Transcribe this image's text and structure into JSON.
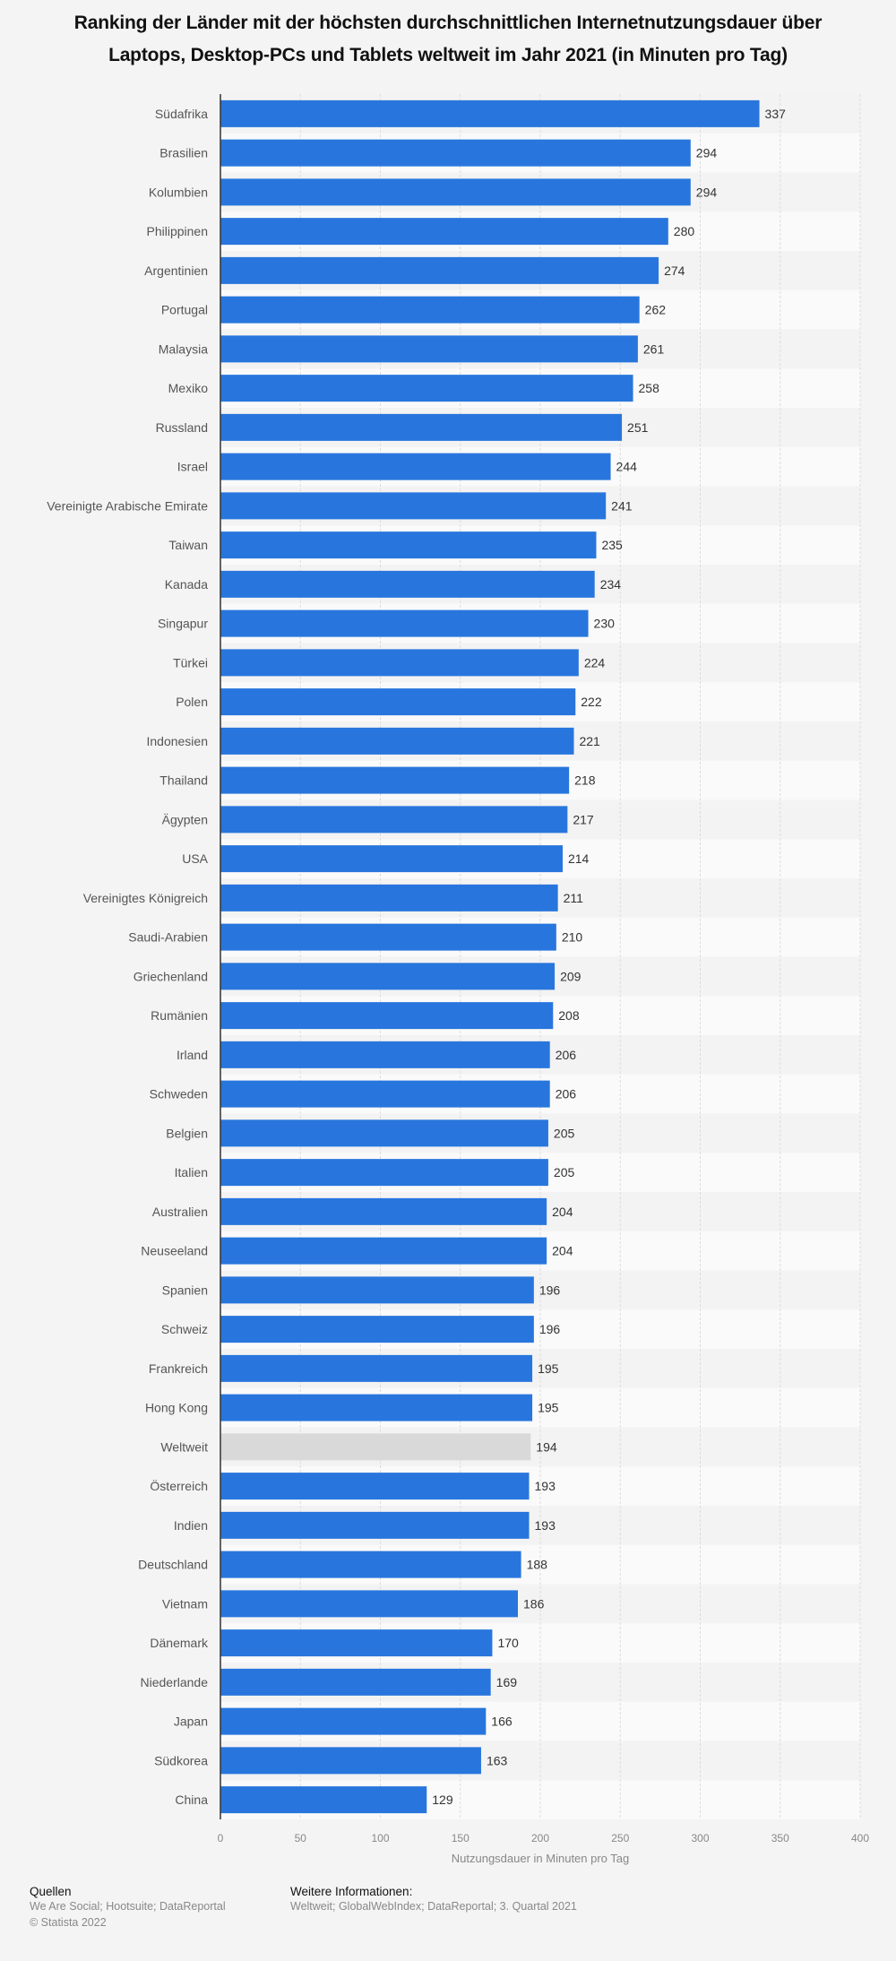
{
  "chart_data": {
    "type": "bar",
    "orientation": "horizontal",
    "title": "Ranking der Länder mit der höchsten durchschnittlichen Internetnutzungsdauer über Laptops, Desktop-PCs und Tablets weltweit im Jahr 2021 (in Minuten pro Tag)",
    "xlabel": "Nutzungsdauer in Minuten pro Tag",
    "ylabel": "",
    "xlim": [
      0,
      400
    ],
    "xticks": [
      0,
      50,
      100,
      150,
      200,
      250,
      300,
      350,
      400
    ],
    "grid": true,
    "categories": [
      "Südafrika",
      "Brasilien",
      "Kolumbien",
      "Philippinen",
      "Argentinien",
      "Portugal",
      "Malaysia",
      "Mexiko",
      "Russland",
      "Israel",
      "Vereinigte Arabische Emirate",
      "Taiwan",
      "Kanada",
      "Singapur",
      "Türkei",
      "Polen",
      "Indonesien",
      "Thailand",
      "Ägypten",
      "USA",
      "Vereinigtes Königreich",
      "Saudi-Arabien",
      "Griechenland",
      "Rumänien",
      "Irland",
      "Schweden",
      "Belgien",
      "Italien",
      "Australien",
      "Neuseeland",
      "Spanien",
      "Schweiz",
      "Frankreich",
      "Hong Kong",
      "Weltweit",
      "Österreich",
      "Indien",
      "Deutschland",
      "Vietnam",
      "Dänemark",
      "Niederlande",
      "Japan",
      "Südkorea",
      "China"
    ],
    "values": [
      337,
      294,
      294,
      280,
      274,
      262,
      261,
      258,
      251,
      244,
      241,
      235,
      234,
      230,
      224,
      222,
      221,
      218,
      217,
      214,
      211,
      210,
      209,
      208,
      206,
      206,
      205,
      205,
      204,
      204,
      196,
      196,
      195,
      195,
      194,
      193,
      193,
      188,
      186,
      170,
      169,
      166,
      163,
      129
    ],
    "highlight": "Weltweit",
    "colors": {
      "bar": "#2876dd",
      "highlight": "#d9d9d9"
    }
  },
  "footer": {
    "sources_heading": "Quellen",
    "sources": "We Are Social; Hootsuite; DataReportal",
    "copyright": "© Statista 2022",
    "info_heading": "Weitere Informationen:",
    "info": "Weltweit; GlobalWebIndex; DataReportal; 3. Quartal 2021"
  }
}
